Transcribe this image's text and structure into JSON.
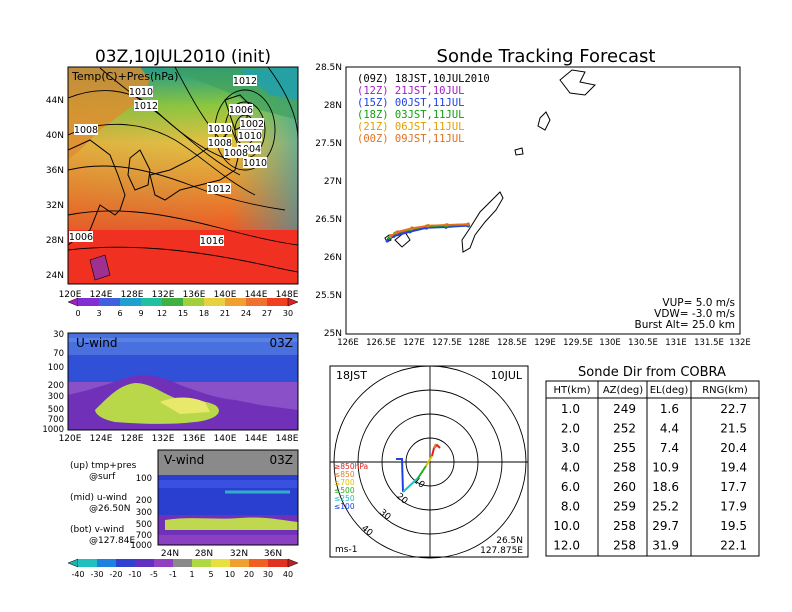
{
  "map_panel": {
    "title": "03Z,10JUL2010 (init)",
    "legend_label": "Temp(C)+Pres(hPa)",
    "lat_ticks": [
      "44N",
      "40N",
      "36N",
      "32N",
      "28N",
      "24N"
    ],
    "lon_ticks": [
      "120E",
      "124E",
      "128E",
      "132E",
      "136E",
      "140E",
      "144E",
      "148E"
    ],
    "colorbar_ticks": [
      "0",
      "3",
      "6",
      "9",
      "12",
      "15",
      "18",
      "21",
      "24",
      "27",
      "30"
    ],
    "isobar_labels": [
      "1012",
      "1010",
      "1012",
      "1006",
      "1008",
      "1010",
      "1008",
      "1010",
      "1004",
      "1002",
      "1008",
      "1010",
      "1012",
      "1006",
      "1016"
    ]
  },
  "u_panel": {
    "label": "U-wind",
    "time": "03Z",
    "y_ticks": [
      "30",
      "70",
      "100",
      "200",
      "300",
      "500",
      "700",
      "1000"
    ],
    "x_ticks": [
      "120E",
      "124E",
      "128E",
      "132E",
      "136E",
      "140E",
      "144E",
      "148E"
    ]
  },
  "v_panel": {
    "label": "V-wind",
    "time": "03Z",
    "y_ticks": [
      "100",
      "200",
      "300",
      "500",
      "700",
      "1000"
    ],
    "x_ticks": [
      "24N",
      "28N",
      "32N",
      "36N"
    ],
    "notes": [
      {
        "line1": "(up) tmp+pres",
        "line2": "@surf"
      },
      {
        "line1": "(mid) u-wind",
        "line2": "@26.50N"
      },
      {
        "line1": "(bot) v-wind",
        "line2": "@127.84E"
      }
    ],
    "colorbar_ticks": [
      "-40",
      "-30",
      "-20",
      "-10",
      "-5",
      "-1",
      "1",
      "5",
      "10",
      "20",
      "30",
      "40"
    ]
  },
  "tracking": {
    "title": "Sonde Tracking Forecast",
    "legend": [
      {
        "label": "(09Z)  18JST,10JUL2010",
        "color": "#000000"
      },
      {
        "label": "(12Z)  21JST,10JUL",
        "color": "#a020c0"
      },
      {
        "label": "(15Z)  00JST,11JUL",
        "color": "#2040e0"
      },
      {
        "label": "(18Z)  03JST,11JUL",
        "color": "#10a010"
      },
      {
        "label": "(21Z)  06JST,11JUL",
        "color": "#e0a000"
      },
      {
        "label": "(00Z)  09JST,11JUL",
        "color": "#e07020"
      }
    ],
    "y_ticks": [
      "28.5N",
      "28N",
      "27.5N",
      "27N",
      "26.5N",
      "26N",
      "25.5N",
      "25N"
    ],
    "x_ticks": [
      "126E",
      "126.5E",
      "127E",
      "127.5E",
      "128E",
      "128.5E",
      "129E",
      "129.5E",
      "130E",
      "130.5E",
      "131E",
      "131.5E",
      "132E"
    ],
    "params": [
      "VUP=  5.0  m/s",
      "VDW= -3.0  m/s",
      "Burst Alt=  25.0  km"
    ]
  },
  "polar": {
    "time_label": "18JST",
    "date_label": "10JUL",
    "range_labels": [
      "10",
      "20",
      "30",
      "40"
    ],
    "legend": [
      {
        "label": "≥850hPa",
        "color": "#e02020"
      },
      {
        "label": "≤850",
        "color": "#e08020"
      },
      {
        "label": "≤700",
        "color": "#e0c000"
      },
      {
        "label": "≤500",
        "color": "#20b020"
      },
      {
        "label": "≤250",
        "color": "#20c0c0"
      },
      {
        "label": "≤100",
        "color": "#2040e0"
      }
    ],
    "units": "ms-1",
    "location_lat": "26.5N",
    "location_lon": "127.875E"
  },
  "sonde_table": {
    "title": "Sonde Dir from COBRA",
    "headers": [
      "HT(km)",
      "AZ(deg)",
      "EL(deg)",
      "RNG(km)"
    ],
    "rows": [
      [
        "1.0",
        "249",
        "1.6",
        "22.7"
      ],
      [
        "2.0",
        "252",
        "4.4",
        "21.5"
      ],
      [
        "3.0",
        "255",
        "7.4",
        "20.4"
      ],
      [
        "4.0",
        "258",
        "10.9",
        "19.4"
      ],
      [
        "6.0",
        "260",
        "18.6",
        "17.7"
      ],
      [
        "8.0",
        "259",
        "25.2",
        "17.9"
      ],
      [
        "10.0",
        "258",
        "29.7",
        "19.5"
      ],
      [
        "12.0",
        "258",
        "31.9",
        "22.1"
      ]
    ]
  },
  "chart_data": [
    {
      "type": "line",
      "title": "Sonde Tracking Forecast",
      "xlabel": "",
      "ylabel": "",
      "xlim": [
        126,
        132
      ],
      "ylim": [
        25,
        28.5
      ],
      "series": [
        {
          "name": "(09Z)  18JST,10JUL2010",
          "x": [
            127.84,
            127.5,
            127.2,
            127.0,
            126.75,
            126.65
          ],
          "y": [
            26.42,
            26.42,
            26.41,
            26.38,
            26.33,
            26.28
          ]
        },
        {
          "name": "(12Z)  21JST,10JUL",
          "x": [
            127.84,
            127.5,
            127.2,
            126.95,
            126.72,
            126.62
          ],
          "y": [
            26.42,
            26.41,
            26.4,
            26.35,
            26.3,
            26.24
          ]
        },
        {
          "name": "(15Z)  00JST,11JUL",
          "x": [
            127.84,
            127.5,
            127.2,
            126.95,
            126.7,
            126.6
          ],
          "y": [
            26.42,
            26.4,
            26.39,
            26.34,
            26.28,
            26.22
          ]
        },
        {
          "name": "(18Z)  03JST,11JUL",
          "x": [
            127.84,
            127.5,
            127.2,
            126.95,
            126.72,
            126.63
          ],
          "y": [
            26.43,
            26.42,
            26.41,
            26.37,
            26.32,
            26.26
          ]
        },
        {
          "name": "(21Z)  06JST,11JUL",
          "x": [
            127.84,
            127.5,
            127.22,
            126.97,
            126.74,
            126.65
          ],
          "y": [
            26.44,
            26.43,
            26.42,
            26.38,
            26.33,
            26.28
          ]
        },
        {
          "name": "(00Z)  09JST,11JUL",
          "x": [
            127.84,
            127.52,
            127.23,
            126.98,
            126.76,
            126.66
          ],
          "y": [
            26.44,
            26.43,
            26.42,
            26.39,
            26.34,
            26.29
          ]
        }
      ]
    },
    {
      "type": "table",
      "title": "Sonde Dir from COBRA",
      "columns": [
        "HT(km)",
        "AZ(deg)",
        "EL(deg)",
        "RNG(km)"
      ],
      "rows": [
        [
          1.0,
          249,
          1.6,
          22.7
        ],
        [
          2.0,
          252,
          4.4,
          21.5
        ],
        [
          3.0,
          255,
          7.4,
          20.4
        ],
        [
          4.0,
          258,
          10.9,
          19.4
        ],
        [
          6.0,
          260,
          18.6,
          17.7
        ],
        [
          8.0,
          259,
          25.2,
          17.9
        ],
        [
          10.0,
          258,
          29.7,
          19.5
        ],
        [
          12.0,
          258,
          31.9,
          22.1
        ]
      ]
    }
  ]
}
